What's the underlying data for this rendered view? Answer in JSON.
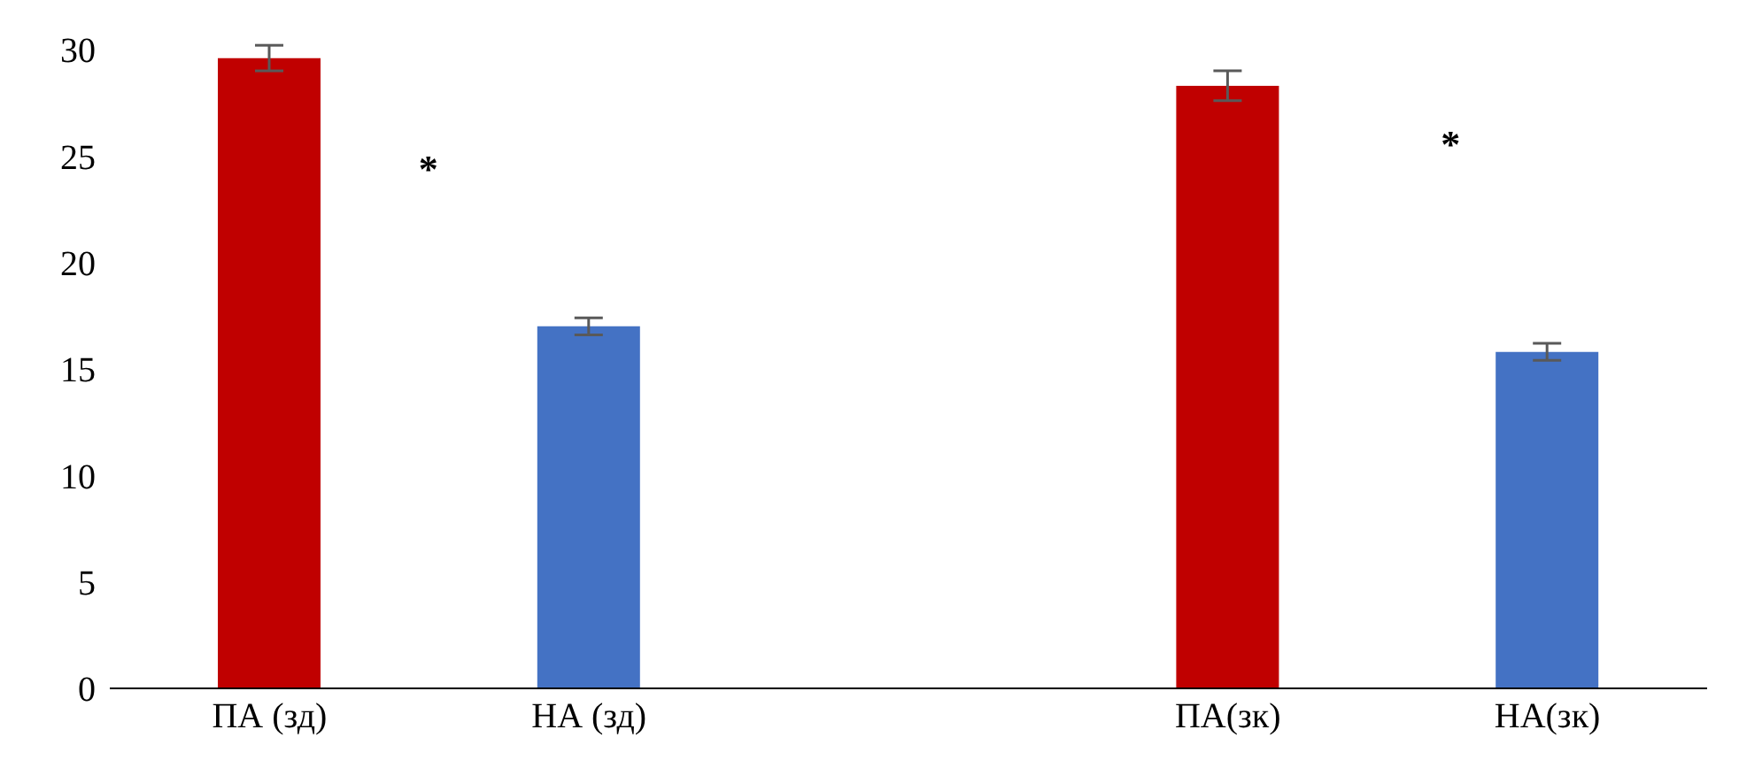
{
  "chart_data": {
    "type": "bar",
    "categories": [
      "ПА (зд)",
      "НА (зд)",
      null,
      "ПА(зк)",
      "НА(зк)"
    ],
    "values": [
      29.6,
      17.0,
      null,
      28.3,
      15.8
    ],
    "errors": [
      0.6,
      0.4,
      null,
      0.7,
      0.4
    ],
    "colors": [
      "#c00000",
      "#4472c4",
      "#4472c4",
      "#c00000",
      "#4472c4"
    ],
    "ylim": [
      0,
      30
    ],
    "yticks": [
      0,
      5,
      10,
      15,
      20,
      25,
      30
    ],
    "annotations": [
      "*",
      "*"
    ]
  }
}
